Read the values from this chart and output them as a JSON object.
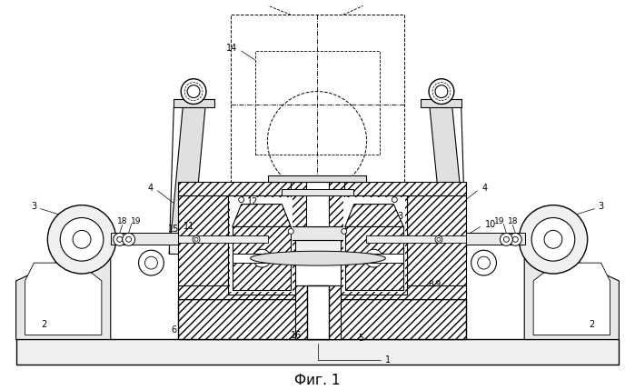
{
  "title": "Фиг. 1",
  "bg_color": "#ffffff",
  "fig_width": 6.99,
  "fig_height": 4.29,
  "dpi": 100
}
